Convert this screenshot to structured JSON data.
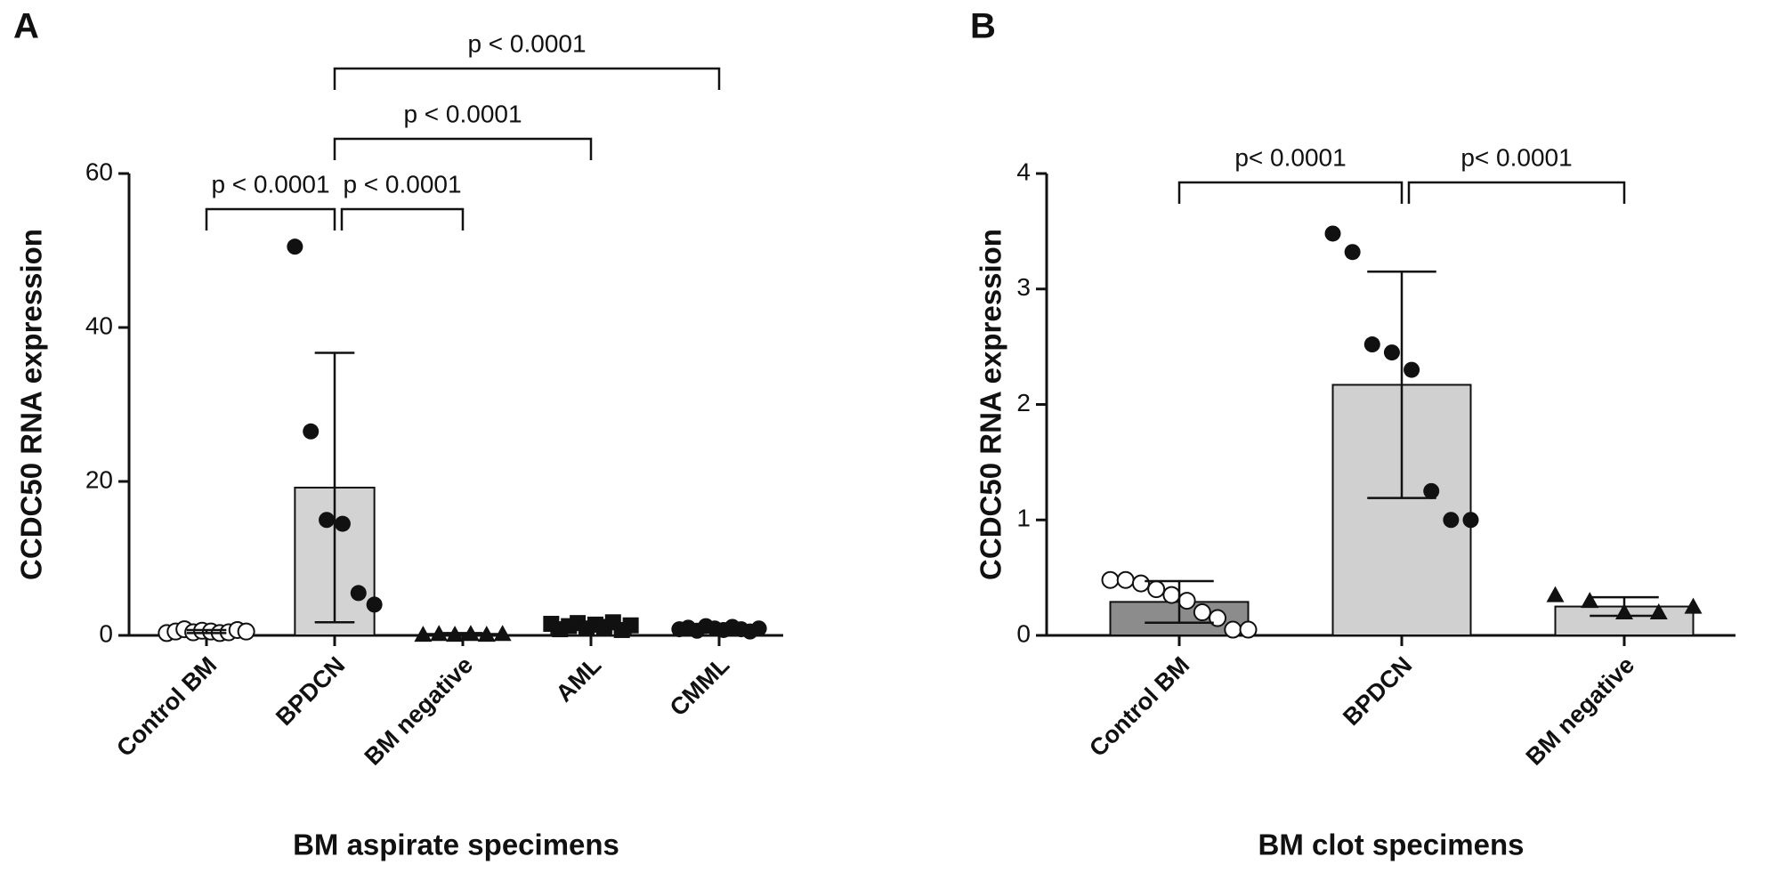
{
  "chart_data": [
    {
      "type": "bar",
      "panel_label": "A",
      "ylabel": "CCDC50 RNA expression",
      "xlabel": "BM aspirate specimens",
      "categories": [
        "Control BM",
        "BPDCN",
        "BM negative",
        "AML",
        "CMML"
      ],
      "values": [
        0.5,
        19.2,
        0.2,
        1.2,
        0.8
      ],
      "errors": [
        0.2,
        17.5,
        0.1,
        0.4,
        0.3
      ],
      "points": [
        [
          0.3,
          0.5,
          0.8,
          0.4,
          0.6,
          0.5,
          0.3,
          0.4,
          0.7,
          0.5
        ],
        [
          50.5,
          26.5,
          15,
          14.5,
          5.5,
          4
        ],
        [
          0.1,
          0.2,
          0.1,
          0.2,
          0.1,
          0.2
        ],
        [
          1.5,
          0.8,
          1.2,
          1.6,
          0.9,
          1.4,
          1.1,
          1.7,
          0.7,
          1.3
        ],
        [
          0.8,
          1.0,
          0.6,
          1.2,
          0.9,
          0.7,
          1.1,
          0.8,
          0.5,
          0.9
        ]
      ],
      "markers": [
        "circle-open",
        "circle",
        "triangle",
        "square",
        "circle"
      ],
      "colors": [
        "#d3d3d3",
        "#d3d3d3",
        "#d3d3d3",
        "#d3d3d3",
        "#d3d3d3"
      ],
      "ylim": [
        0,
        60
      ],
      "yticks": [
        0,
        20,
        40,
        60
      ],
      "comparisons": [
        {
          "groups": [
            "Control BM",
            "BPDCN"
          ],
          "label": "p < 0.0001"
        },
        {
          "groups": [
            "BPDCN",
            "BM negative"
          ],
          "label": "p < 0.0001"
        },
        {
          "groups": [
            "BPDCN",
            "AML"
          ],
          "label": "p < 0.0001"
        },
        {
          "groups": [
            "BPDCN",
            "CMML"
          ],
          "label": "p < 0.0001"
        }
      ]
    },
    {
      "type": "bar",
      "panel_label": "B",
      "ylabel": "CCDC50 RNA expression",
      "xlabel": "BM clot specimens",
      "categories": [
        "Control BM",
        "BPDCN",
        "BM negative"
      ],
      "values": [
        0.29,
        2.17,
        0.25
      ],
      "errors": [
        0.18,
        0.98,
        0.08
      ],
      "points": [
        [
          0.48,
          0.48,
          0.45,
          0.4,
          0.35,
          0.3,
          0.2,
          0.15,
          0.05,
          0.05
        ],
        [
          3.48,
          3.32,
          2.52,
          2.45,
          2.3,
          1.25,
          1.0,
          1.0
        ],
        [
          0.35,
          0.3,
          0.2,
          0.2,
          0.25
        ]
      ],
      "markers": [
        "circle-open",
        "circle",
        "triangle"
      ],
      "colors": [
        "#8c8c8c",
        "#d0d0d0",
        "#d0d0d0"
      ],
      "ylim": [
        0,
        4
      ],
      "yticks": [
        0,
        1,
        2,
        3,
        4
      ],
      "comparisons": [
        {
          "groups": [
            "Control BM",
            "BPDCN"
          ],
          "label": "p< 0.0001"
        },
        {
          "groups": [
            "BPDCN",
            "BM negative"
          ],
          "label": "p< 0.0001"
        }
      ]
    }
  ]
}
